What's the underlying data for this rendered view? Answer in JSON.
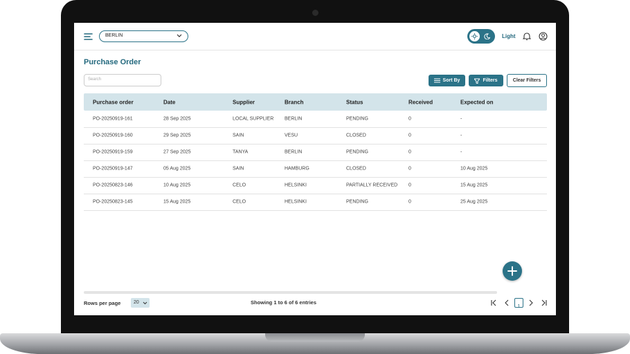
{
  "header": {
    "location": "BERLIN",
    "theme": "Light"
  },
  "page": {
    "title": "Purchase Order",
    "search_placeholder": "Search",
    "actions": [
      "Sort By",
      "Filters",
      "Clear Filters"
    ]
  },
  "table": {
    "columns": [
      "Purchase order",
      "Date",
      "Supplier",
      "Branch",
      "Status",
      "Received",
      "Expected on"
    ],
    "rows": [
      [
        "PO-20250919-161",
        "28 Sep 2025",
        "LOCAL SUPPLIER",
        "BERLIN",
        "PENDING",
        "0",
        "-"
      ],
      [
        "PO-20250919-160",
        "29 Sep 2025",
        "SAIN",
        "VESU",
        "CLOSED",
        "0",
        "-"
      ],
      [
        "PO-20250919-159",
        "27 Sep 2025",
        "TANYA",
        "BERLIN",
        "PENDING",
        "0",
        "-"
      ],
      [
        "PO-20250919-147",
        "05 Aug 2025",
        "SAIN",
        "HAMBURG",
        "CLOSED",
        "0",
        "10 Aug 2025"
      ],
      [
        "PO-20250823-146",
        "10 Aug 2025",
        "CELO",
        "HELSINKI",
        "PARTIALLY RECEIVED",
        "0",
        "15 Aug 2025"
      ],
      [
        "PO-20250823-145",
        "15 Aug 2025",
        "CELO",
        "HELSINKI",
        "PENDING",
        "0",
        "25 Aug 2025"
      ]
    ]
  },
  "footer": {
    "rows_per_page_label": "Rows per page",
    "rows_per_page": "20",
    "summary": "Showing 1 to 6 of 6 entries",
    "current_page": "1"
  }
}
